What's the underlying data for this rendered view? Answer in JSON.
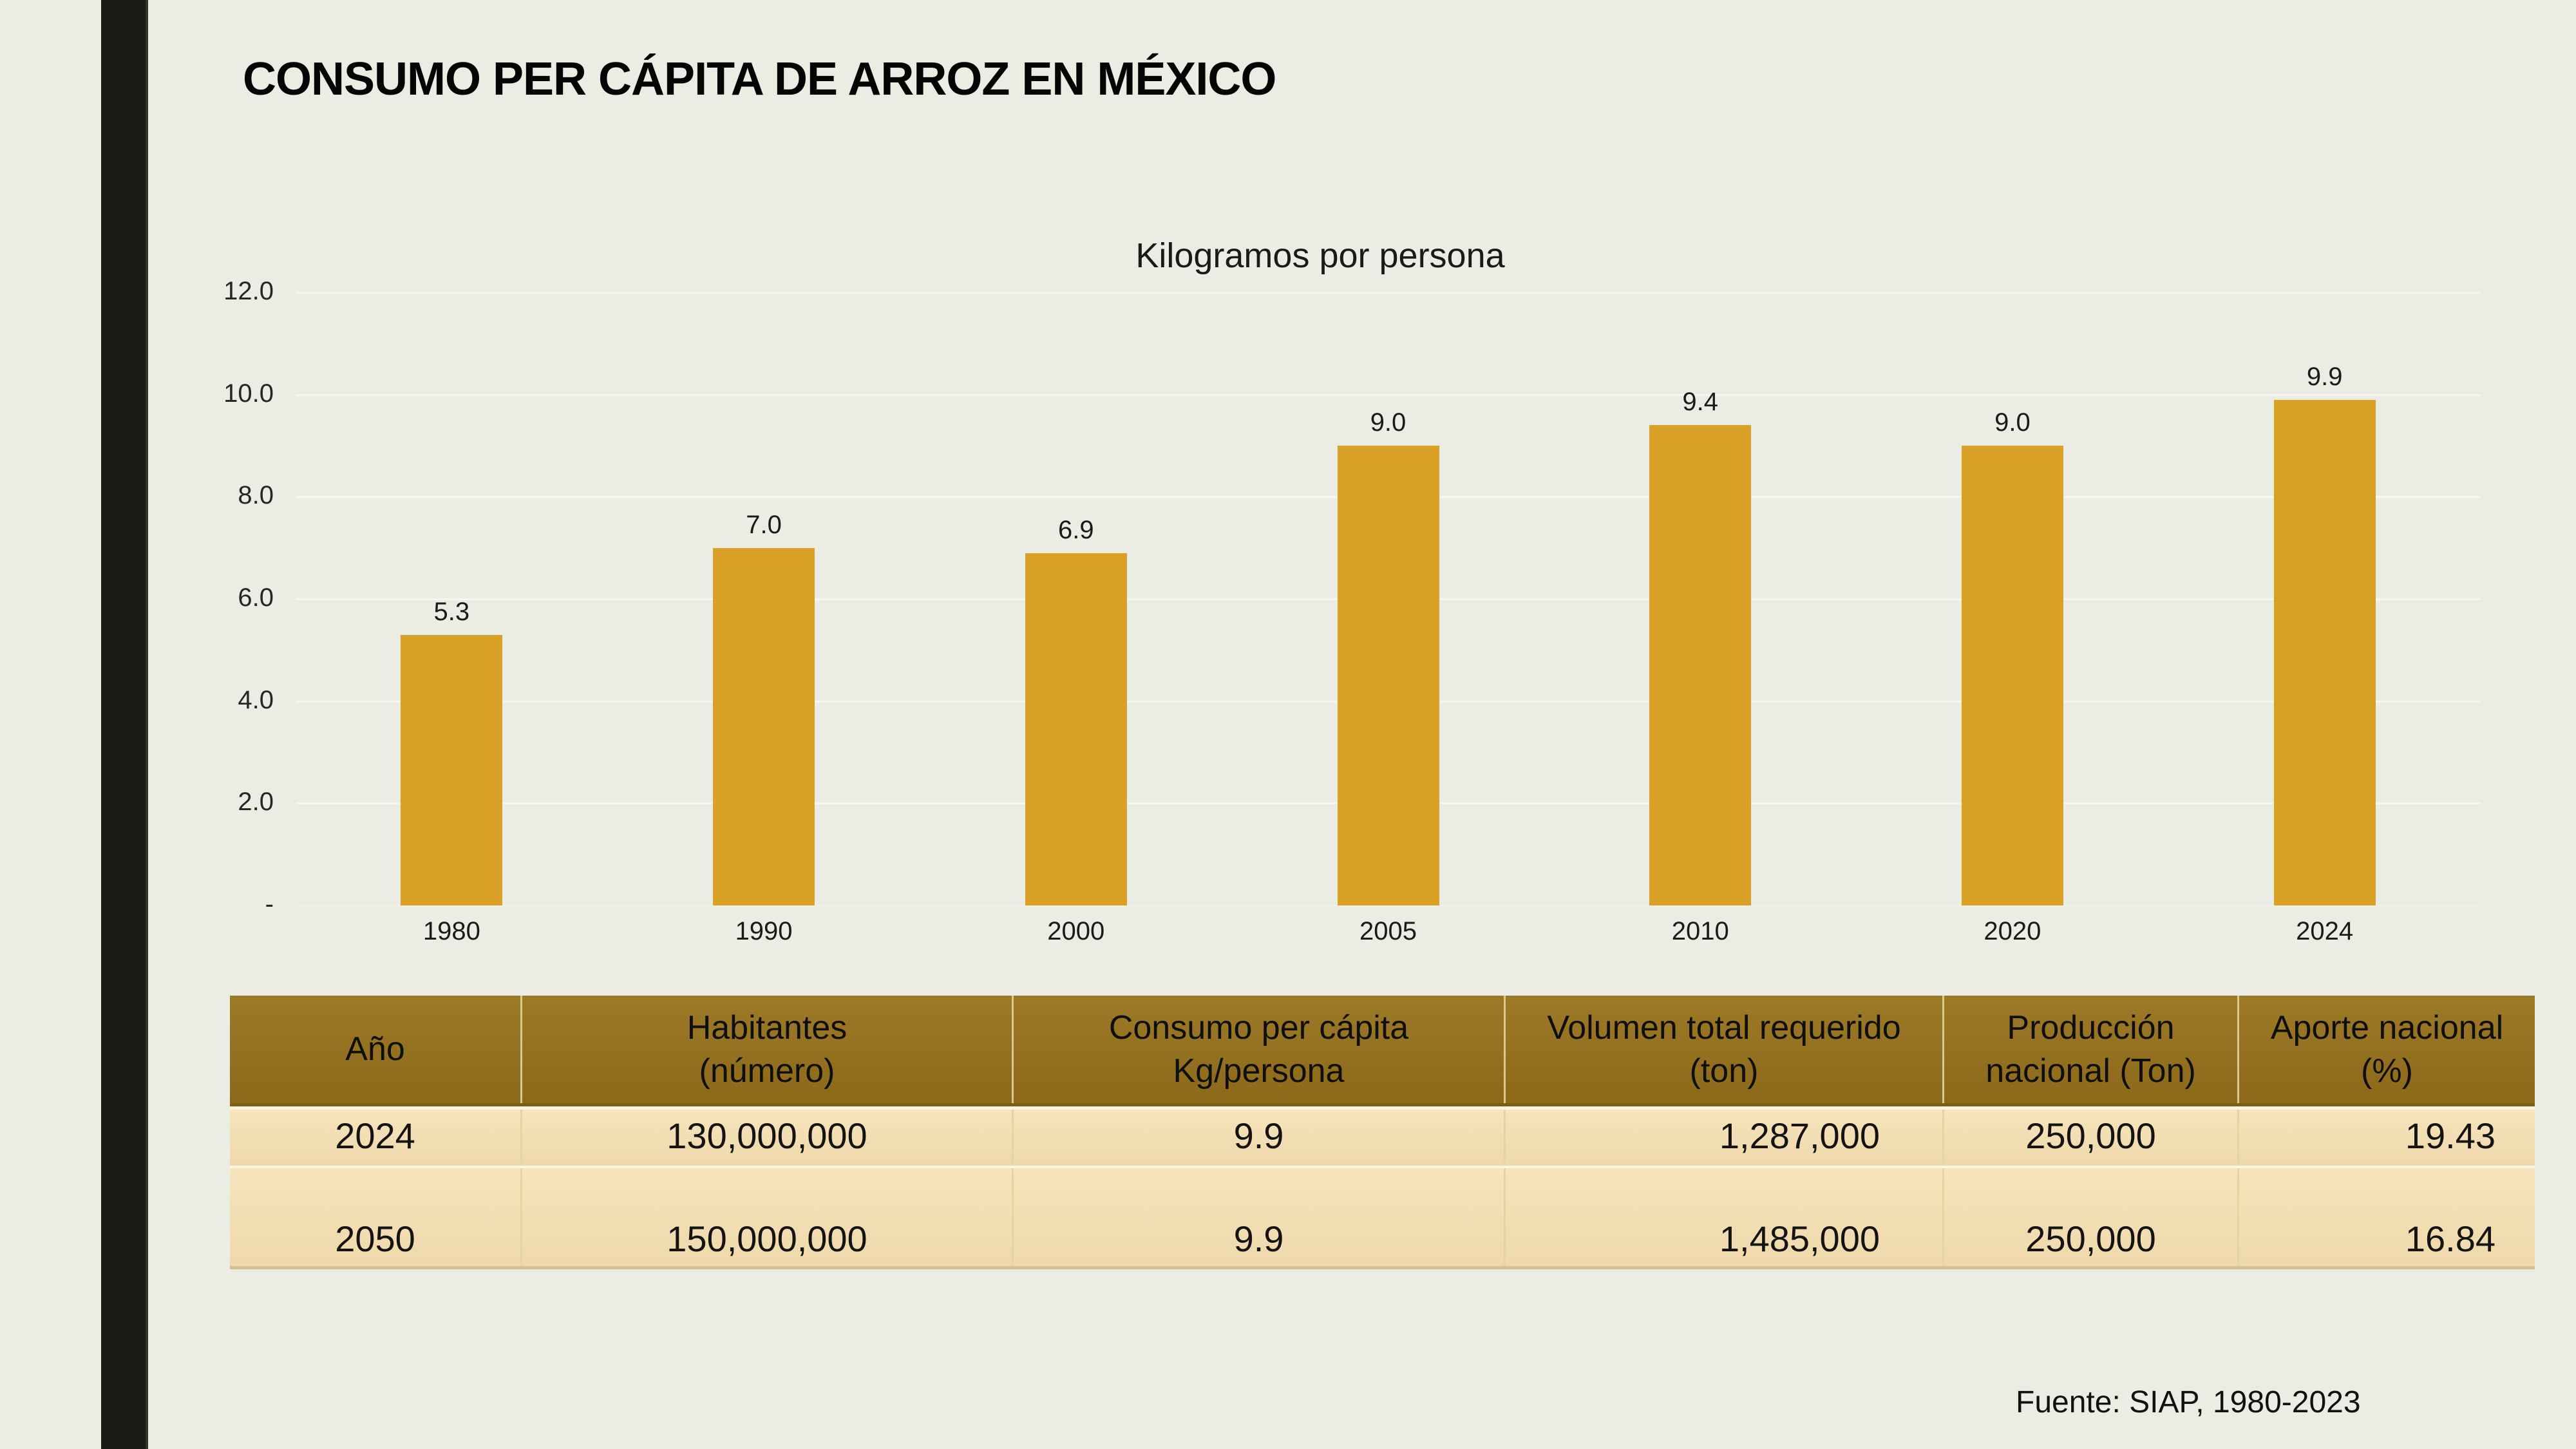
{
  "slide": {
    "title": "CONSUMO PER CÁPITA DE ARROZ EN MÉXICO",
    "footer": "Fuente: SIAP, 1980-2023"
  },
  "chart_data": {
    "type": "bar",
    "title": "Kilogramos por persona",
    "categories": [
      "1980",
      "1990",
      "2000",
      "2005",
      "2010",
      "2020",
      "2024"
    ],
    "values": [
      5.3,
      7.0,
      6.9,
      9.0,
      9.4,
      9.0,
      9.9
    ],
    "data_labels": [
      "5.3",
      "7.0",
      "6.9",
      "9.0",
      "9.4",
      "9.0",
      "9.9"
    ],
    "xlabel": "",
    "ylabel": "",
    "ylim": [
      0,
      12
    ],
    "yticks": [
      {
        "v": 12,
        "label": "12.0"
      },
      {
        "v": 10,
        "label": "10.0"
      },
      {
        "v": 8,
        "label": "8.0"
      },
      {
        "v": 6,
        "label": "6.0"
      },
      {
        "v": 4,
        "label": "4.0"
      },
      {
        "v": 2,
        "label": "2.0"
      },
      {
        "v": 0,
        "label": "-"
      }
    ],
    "grid": "horizontal",
    "legend_position": "none",
    "bar_color": "#d9a226"
  },
  "table": {
    "headers": [
      "Año",
      "Habitantes\n(número)",
      "Consumo per cápita\nKg/persona",
      "Volumen total requerido\n(ton)",
      "Producción\nnacional (Ton)",
      "Aporte nacional\n(%)"
    ],
    "rows": [
      [
        "2024",
        "130,000,000",
        "9.9",
        "1,287,000",
        "250,000",
        "19.43"
      ],
      [
        "2050",
        "150,000,000",
        "9.9",
        "1,485,000",
        "250,000",
        "16.84"
      ]
    ],
    "header_bg": "#9c7a28",
    "row_bg_top": "#f6e4bc",
    "row_bg_bottom": "#efd9ac"
  },
  "colors": {
    "background": "#ebece3",
    "accent_bar": "#1b1b15",
    "bar": "#d9a226",
    "gridline": "#f6f6ee",
    "text": "#1a1a1a"
  }
}
